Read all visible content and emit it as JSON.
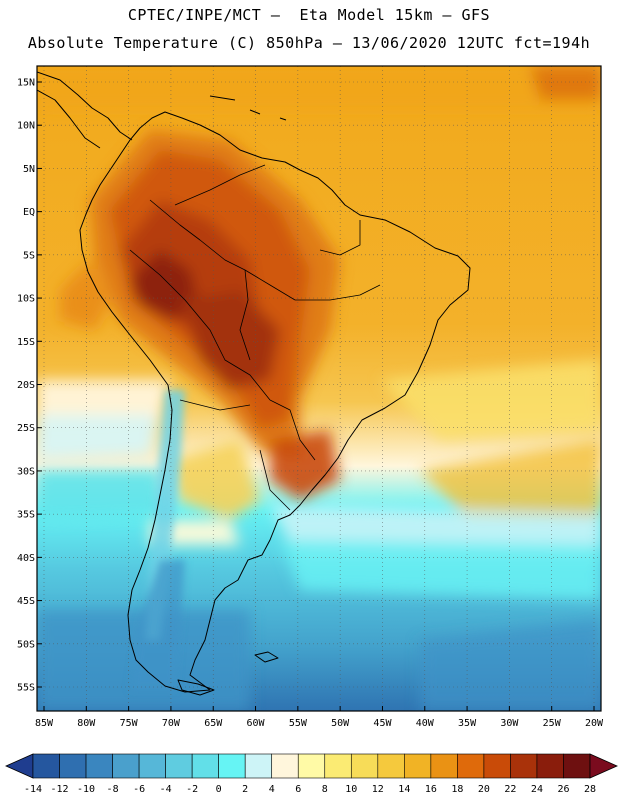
{
  "header": {
    "line1": "CPTEC/INPE/MCT –  Eta Model 15km – GFS",
    "line2": "Absolute Temperature (C) 850hPa – 13/06/2020 12UTC fct=194h"
  },
  "map": {
    "lat_labels": [
      "15N",
      "10N",
      "5N",
      "EQ",
      "5S",
      "10S",
      "15S",
      "20S",
      "25S",
      "30S",
      "35S",
      "40S",
      "45S",
      "50S",
      "55S"
    ],
    "lon_labels": [
      "85W",
      "80W",
      "75W",
      "70W",
      "65W",
      "60W",
      "55W",
      "50W",
      "45W",
      "40W",
      "35W",
      "30W",
      "25W",
      "20W"
    ],
    "lat_range": [
      15,
      -55
    ],
    "lon_range": [
      -85,
      -20
    ]
  },
  "colorbar": {
    "labels": [
      "-14",
      "-12",
      "-10",
      "-8",
      "-6",
      "-4",
      "-2",
      "0",
      "2",
      "4",
      "6",
      "8",
      "10",
      "12",
      "14",
      "16",
      "18",
      "20",
      "22",
      "24",
      "26",
      "28"
    ],
    "colors": [
      "#1f3d8f",
      "#25579f",
      "#2f6fb0",
      "#3a86bf",
      "#4aa0cc",
      "#56b7d8",
      "#5fcce0",
      "#62dfe8",
      "#66f4f4",
      "#cdf4f7",
      "#fff6dc",
      "#fffaa6",
      "#fbeb73",
      "#f7dc58",
      "#f5c93d",
      "#f1b325",
      "#ea9214",
      "#df6a0b",
      "#c94b08",
      "#a9320a",
      "#8a1d0c",
      "#6e1010",
      "#7a0b1e"
    ]
  }
}
